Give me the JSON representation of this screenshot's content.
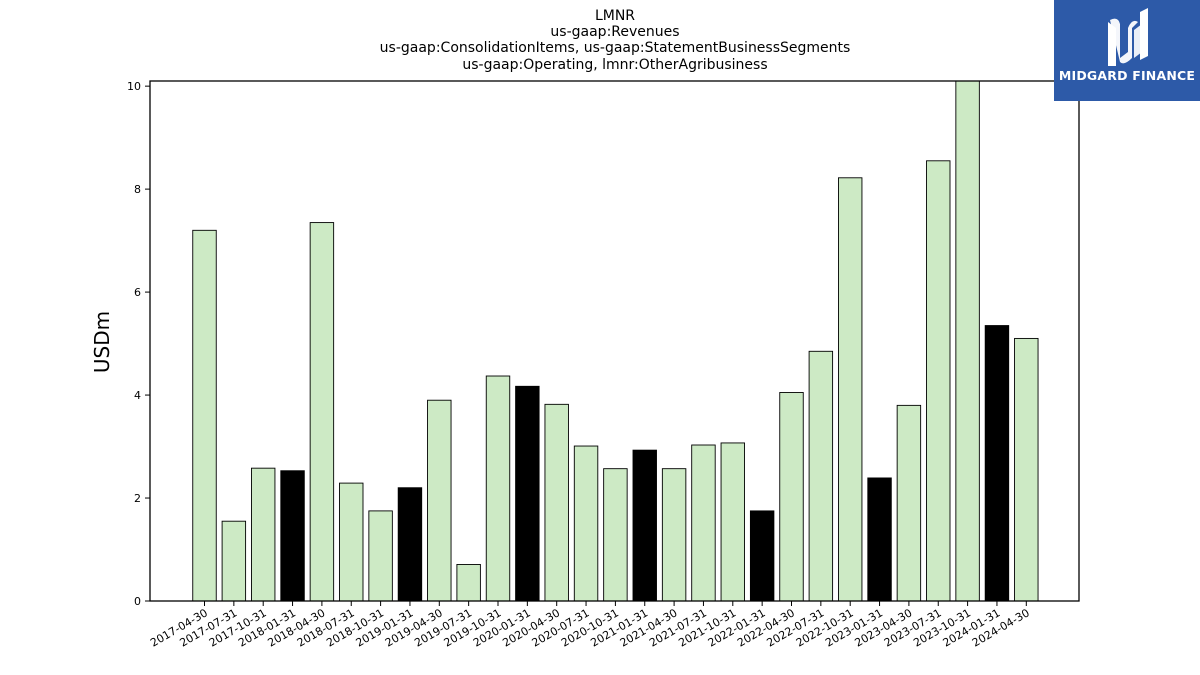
{
  "chart_data": {
    "type": "bar",
    "title_lines": [
      "LMNR",
      "us-gaap:Revenues",
      "us-gaap:ConsolidationItems, us-gaap:StatementBusinessSegments",
      "us-gaap:Operating, lmnr:OtherAgribusiness"
    ],
    "xlabel": "",
    "ylabel": "USDm",
    "ylim": [
      0,
      10.1
    ],
    "yticks": [
      0,
      2,
      4,
      6,
      8,
      10
    ],
    "categories": [
      "2017-04-30",
      "2017-07-31",
      "2017-10-31",
      "2018-01-31",
      "2018-04-30",
      "2018-07-31",
      "2018-10-31",
      "2019-01-31",
      "2019-04-30",
      "2019-07-31",
      "2019-10-31",
      "2020-01-31",
      "2020-04-30",
      "2020-07-31",
      "2020-10-31",
      "2021-01-31",
      "2021-04-30",
      "2021-07-31",
      "2021-10-31",
      "2022-01-31",
      "2022-04-30",
      "2022-07-31",
      "2022-10-31",
      "2023-01-31",
      "2023-04-30",
      "2023-07-31",
      "2023-10-31",
      "2024-01-31",
      "2024-04-30"
    ],
    "values": [
      7.2,
      1.55,
      2.58,
      2.53,
      7.35,
      2.29,
      1.75,
      2.2,
      3.9,
      0.71,
      4.37,
      4.17,
      3.82,
      3.01,
      2.57,
      2.93,
      2.57,
      3.03,
      3.07,
      1.75,
      4.05,
      4.85,
      8.22,
      2.39,
      3.8,
      8.55,
      10.15,
      5.35,
      5.1
    ],
    "highlight": [
      false,
      false,
      false,
      true,
      false,
      false,
      false,
      true,
      false,
      false,
      false,
      true,
      false,
      false,
      false,
      true,
      false,
      false,
      false,
      true,
      false,
      false,
      false,
      true,
      false,
      false,
      false,
      true,
      false
    ],
    "colors": {
      "normal": "#cdeac5",
      "highlight": "#000000",
      "edge": "#000000"
    },
    "grid": false,
    "legend": "none"
  },
  "logo": {
    "text": "MIDGARD FINANCE",
    "icon": "midgard-finance-logo-icon",
    "background": "#2d5aa8"
  }
}
